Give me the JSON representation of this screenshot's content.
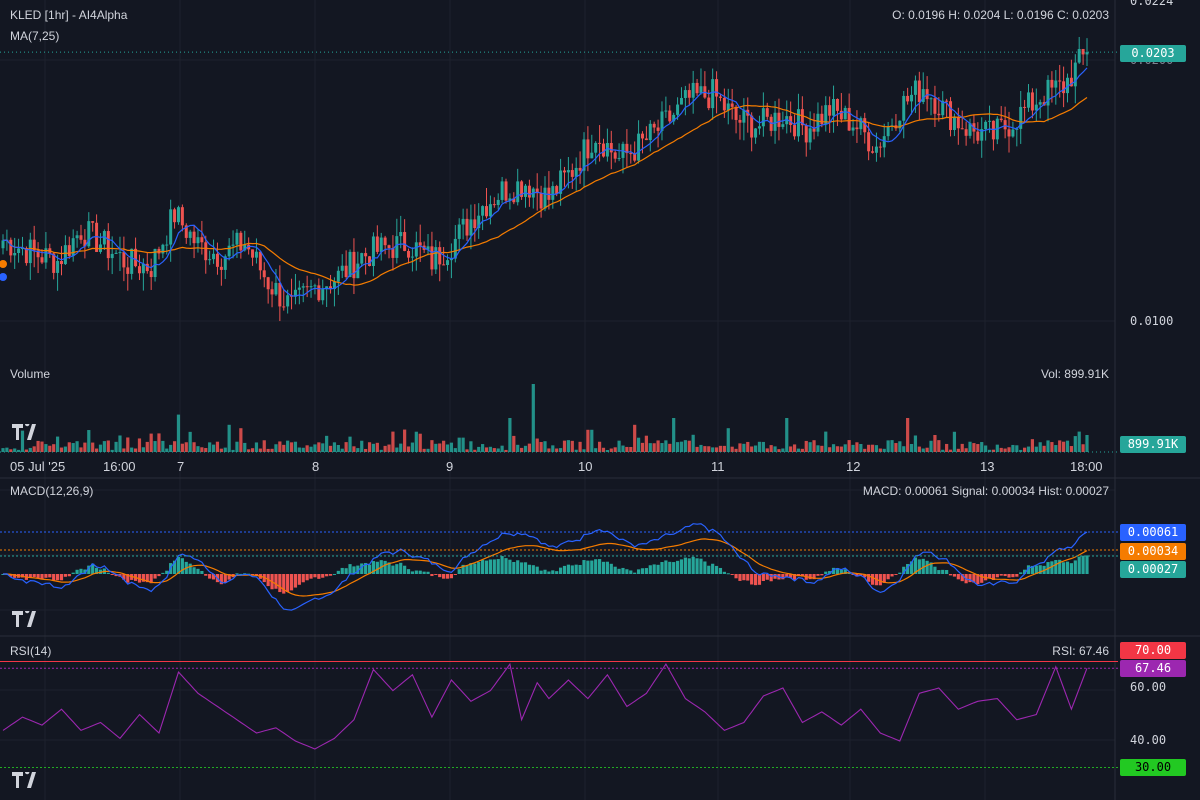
{
  "header": {
    "symbol_title": "KLED [1hr] - AI4Alpha",
    "ma_label": "MA(7,25)",
    "ohlc": "O: 0.0196 H: 0.0204 L: 0.0196 C: 0.0203"
  },
  "volume_panel": {
    "label": "Volume",
    "readout": "Vol: 899.91K"
  },
  "macd_panel": {
    "label": "MACD(12,26,9)",
    "readout": "MACD: 0.00061 Signal: 0.00034 Hist: 0.00027"
  },
  "rsi_panel": {
    "label": "RSI(14)",
    "readout": "RSI: 67.46"
  },
  "colors": {
    "background": "#131722",
    "up": "#26a69a",
    "down": "#ef5350",
    "ma7": "#2962ff",
    "ma25": "#f57c00",
    "macd": "#2962ff",
    "signal": "#f57c00",
    "rsi": "#9c27b0",
    "rsi_upper": "#f23645",
    "rsi_lower": "#22ab22"
  },
  "chart_data": [
    {
      "type": "candlestick",
      "panel": "price",
      "x_ticks": [
        "05 Jul '25",
        "16:00",
        "7",
        "8",
        "9",
        "10",
        "11",
        "12",
        "13",
        "18:00"
      ],
      "y_ticks": [
        0.01,
        0.02,
        0.0224
      ],
      "y_tick_labels": [
        "0.0100",
        "0.0200",
        "0.0224"
      ],
      "ylim": [
        0.0093,
        0.0224
      ],
      "last_price": 0.0203,
      "last_price_label": "0.0203",
      "close_anchors": [
        [
          0,
          0.0131
        ],
        [
          8,
          0.0126
        ],
        [
          14,
          0.0123
        ],
        [
          20,
          0.0135
        ],
        [
          26,
          0.0129
        ],
        [
          32,
          0.0122
        ],
        [
          38,
          0.0121
        ],
        [
          44,
          0.0141
        ],
        [
          50,
          0.0129
        ],
        [
          56,
          0.0125
        ],
        [
          62,
          0.013
        ],
        [
          68,
          0.0115
        ],
        [
          74,
          0.0105
        ],
        [
          80,
          0.0113
        ],
        [
          86,
          0.0117
        ],
        [
          92,
          0.0125
        ],
        [
          98,
          0.0128
        ],
        [
          104,
          0.013
        ],
        [
          110,
          0.0123
        ],
        [
          116,
          0.0131
        ],
        [
          122,
          0.0143
        ],
        [
          128,
          0.015
        ],
        [
          134,
          0.0153
        ],
        [
          140,
          0.0147
        ],
        [
          146,
          0.0158
        ],
        [
          152,
          0.0172
        ],
        [
          158,
          0.0162
        ],
        [
          164,
          0.0168
        ],
        [
          170,
          0.0176
        ],
        [
          176,
          0.0185
        ],
        [
          182,
          0.0187
        ],
        [
          188,
          0.0177
        ],
        [
          194,
          0.0175
        ],
        [
          200,
          0.0179
        ],
        [
          206,
          0.0174
        ],
        [
          212,
          0.0181
        ],
        [
          218,
          0.0176
        ],
        [
          224,
          0.0167
        ],
        [
          230,
          0.0182
        ],
        [
          236,
          0.019
        ],
        [
          242,
          0.018
        ],
        [
          248,
          0.0173
        ],
        [
          254,
          0.0171
        ],
        [
          260,
          0.0178
        ],
        [
          266,
          0.0186
        ],
        [
          272,
          0.019
        ],
        [
          278,
          0.0203
        ]
      ],
      "ma_series": [
        "MA7",
        "MA25"
      ]
    },
    {
      "type": "bar",
      "panel": "volume",
      "last_value": 899910,
      "last_value_label": "899.91K",
      "spike_bars": [
        [
          45,
          0.55
        ],
        [
          58,
          0.4
        ],
        [
          61,
          0.35
        ],
        [
          100,
          0.3
        ],
        [
          130,
          0.5
        ],
        [
          136,
          1.0
        ],
        [
          162,
          0.4
        ],
        [
          172,
          0.5
        ],
        [
          186,
          0.35
        ],
        [
          201,
          0.5
        ],
        [
          211,
          0.3
        ],
        [
          232,
          0.5
        ],
        [
          239,
          0.25
        ],
        [
          276,
          0.3
        ],
        [
          278,
          0.25
        ]
      ]
    },
    {
      "type": "line",
      "panel": "macd",
      "series": [
        {
          "name": "MACD"
        },
        {
          "name": "Signal"
        },
        {
          "name": "Hist"
        }
      ],
      "macd_last": 0.00061,
      "signal_last": 0.00034,
      "hist_last": 0.00027,
      "macd_label": "0.00061",
      "signal_label": "0.00034",
      "hist_label": "0.00027",
      "ylim": [
        -0.0007,
        0.0012
      ]
    },
    {
      "type": "line",
      "panel": "rsi",
      "series": [
        {
          "name": "RSI"
        }
      ],
      "ylim": [
        28,
        72
      ],
      "y_ticks": [
        40,
        60
      ],
      "y_tick_labels": [
        "40.00",
        "60.00"
      ],
      "upper": 70,
      "lower": 30,
      "upper_label": "70.00",
      "lower_label": "30.00",
      "last": 67.46,
      "last_label": "67.46",
      "anchors": [
        [
          0,
          44
        ],
        [
          5,
          49
        ],
        [
          10,
          46
        ],
        [
          15,
          52
        ],
        [
          20,
          44
        ],
        [
          25,
          47
        ],
        [
          30,
          41
        ],
        [
          35,
          50
        ],
        [
          40,
          43
        ],
        [
          45,
          66
        ],
        [
          50,
          58
        ],
        [
          55,
          53
        ],
        [
          60,
          48
        ],
        [
          65,
          43
        ],
        [
          70,
          45
        ],
        [
          75,
          40
        ],
        [
          80,
          37
        ],
        [
          85,
          41
        ],
        [
          90,
          48
        ],
        [
          95,
          67
        ],
        [
          100,
          59
        ],
        [
          105,
          65
        ],
        [
          110,
          49
        ],
        [
          115,
          63
        ],
        [
          120,
          55
        ],
        [
          125,
          59
        ],
        [
          130,
          69
        ],
        [
          133,
          48
        ],
        [
          137,
          62
        ],
        [
          140,
          56
        ],
        [
          145,
          63
        ],
        [
          150,
          56
        ],
        [
          155,
          65
        ],
        [
          160,
          53
        ],
        [
          165,
          58
        ],
        [
          170,
          69
        ],
        [
          175,
          56
        ],
        [
          180,
          51
        ],
        [
          185,
          44
        ],
        [
          190,
          47
        ],
        [
          195,
          57
        ],
        [
          200,
          60
        ],
        [
          205,
          47
        ],
        [
          210,
          51
        ],
        [
          215,
          46
        ],
        [
          220,
          52
        ],
        [
          225,
          43
        ],
        [
          230,
          40
        ],
        [
          235,
          58
        ],
        [
          240,
          60
        ],
        [
          245,
          52
        ],
        [
          250,
          55
        ],
        [
          255,
          56
        ],
        [
          260,
          48
        ],
        [
          265,
          50
        ],
        [
          270,
          68
        ],
        [
          274,
          52
        ],
        [
          278,
          67.46
        ]
      ]
    }
  ]
}
